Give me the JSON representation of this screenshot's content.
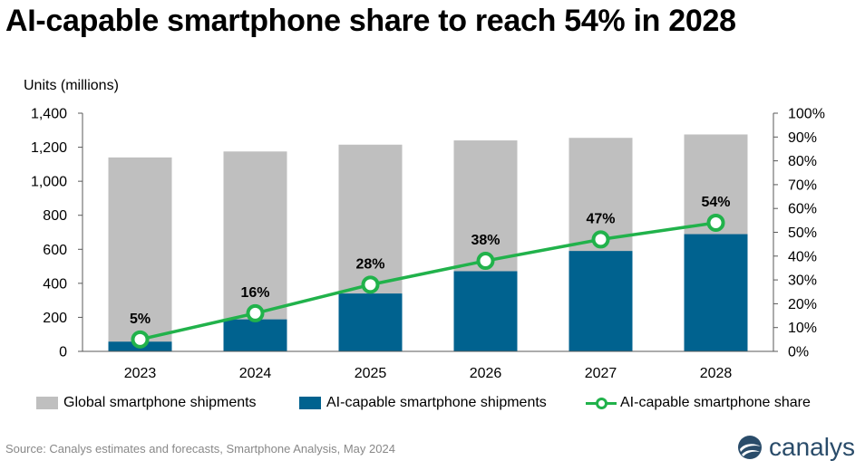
{
  "title": "AI-capable smartphone share to reach 54% in 2028",
  "units_label": "Units (millions)",
  "source": "Source:  Canalys estimates and forecasts, Smartphone  Analysis, May 2024",
  "logo_text": "canalys",
  "legend": {
    "global": "Global smartphone shipments",
    "ai": "AI-capable smartphone shipments",
    "share": "AI-capable smartphone share"
  },
  "colors": {
    "global": "#bfbfbf",
    "ai": "#00628f",
    "share": "#21b24b",
    "logo": "#2a4c6a"
  },
  "chart_data": {
    "type": "bar",
    "categories": [
      "2023",
      "2024",
      "2025",
      "2026",
      "2027",
      "2028"
    ],
    "series": [
      {
        "name": "Global smartphone shipments",
        "type": "bar",
        "axis": "left",
        "values": [
          1140,
          1175,
          1215,
          1240,
          1255,
          1275
        ]
      },
      {
        "name": "AI-capable smartphone shipments",
        "type": "bar",
        "axis": "left",
        "values": [
          57,
          188,
          340,
          471,
          590,
          689
        ]
      },
      {
        "name": "AI-capable smartphone share",
        "type": "line",
        "axis": "right",
        "values": [
          5,
          16,
          28,
          38,
          47,
          54
        ],
        "data_labels": [
          "5%",
          "16%",
          "28%",
          "38%",
          "47%",
          "54%"
        ]
      }
    ],
    "ylabel": "Units (millions)",
    "ylim": [
      0,
      1400
    ],
    "yticks": [
      "0",
      "200",
      "400",
      "600",
      "800",
      "1,000",
      "1,200",
      "1,400"
    ],
    "y2lim": [
      0,
      100
    ],
    "y2ticks": [
      "0%",
      "10%",
      "20%",
      "30%",
      "40%",
      "50%",
      "60%",
      "70%",
      "80%",
      "90%",
      "100%"
    ],
    "grid": false,
    "legend_position": "bottom"
  }
}
